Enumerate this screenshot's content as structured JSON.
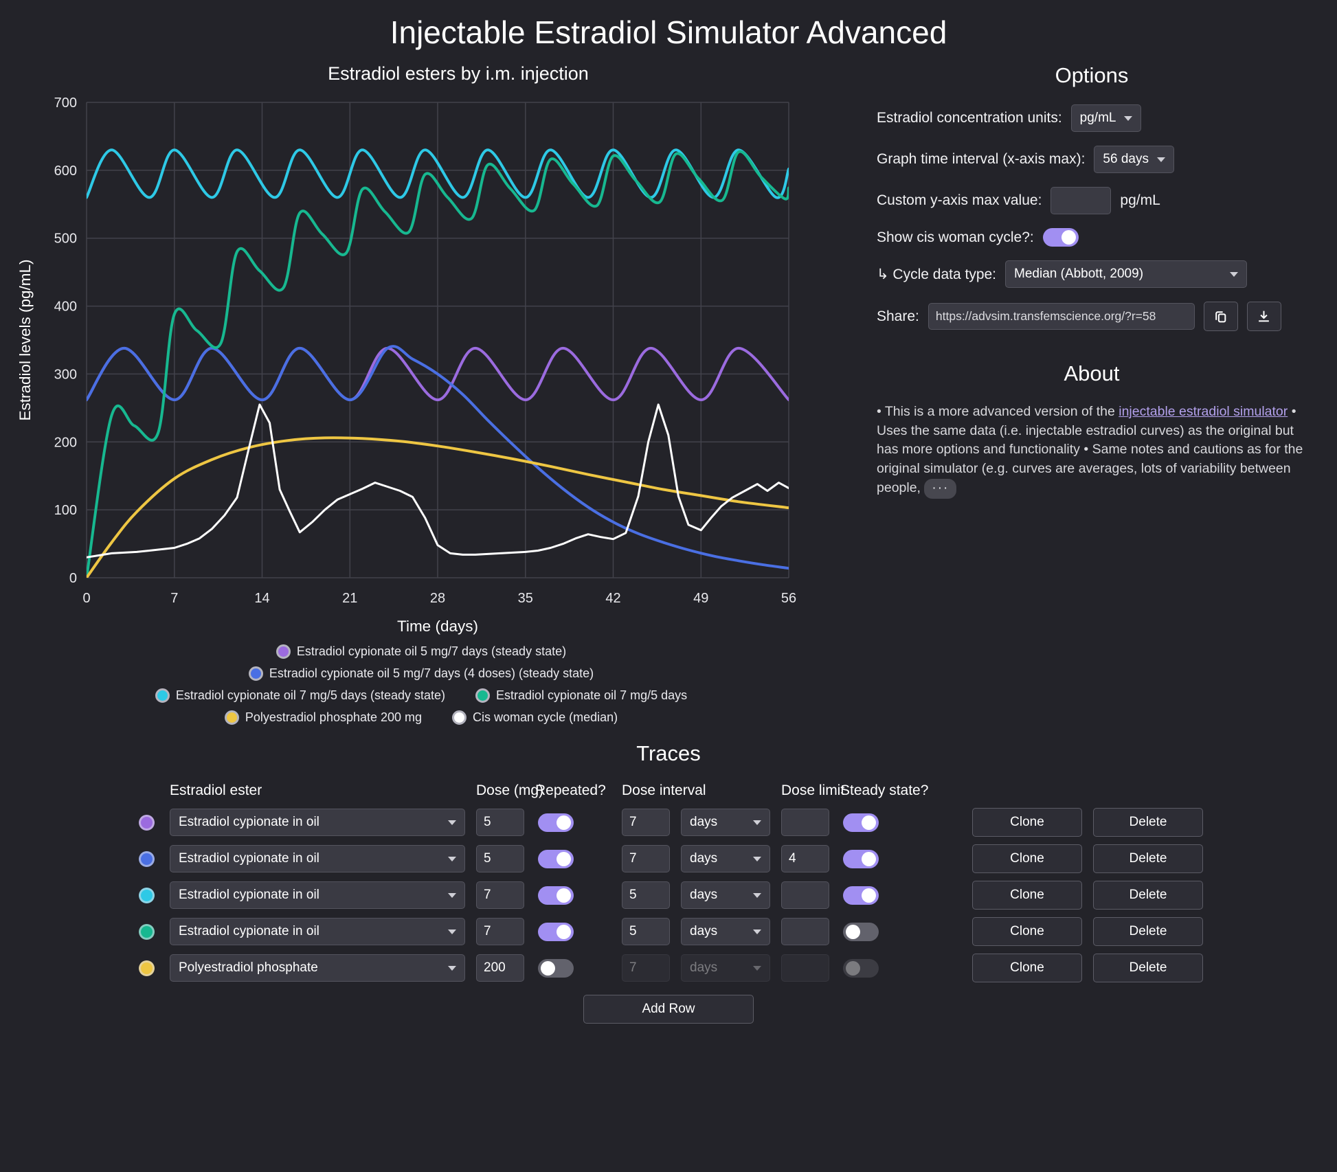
{
  "app": {
    "title": "Injectable Estradiol Simulator Advanced"
  },
  "colors": {
    "background": "#232329",
    "grid": "#42424b",
    "axis_text": "#e8e8ec",
    "toggle_on": "#a18ff2",
    "link": "#b3a1ec"
  },
  "chart_data": {
    "type": "line",
    "title": "Estradiol esters by i.m. injection",
    "xlabel": "Time (days)",
    "ylabel": "Estradiol levels (pg/mL)",
    "xlim": [
      0,
      56
    ],
    "ylim": [
      0,
      700
    ],
    "xticks": [
      0,
      7,
      14,
      21,
      28,
      35,
      42,
      49,
      56
    ],
    "yticks": [
      0,
      100,
      200,
      300,
      400,
      500,
      600,
      700
    ],
    "grid": true,
    "legend_position": "bottom",
    "legend_rows": [
      [
        0
      ],
      [
        1
      ],
      [
        2,
        3
      ],
      [
        4,
        5
      ]
    ],
    "series": [
      {
        "name": "Estradiol cypionate oil 5 mg/7 days (steady state)",
        "color": "#9b6bdf",
        "smooth": true,
        "points": [
          [
            0,
            262
          ],
          [
            3,
            338
          ],
          [
            7,
            262
          ],
          [
            10,
            338
          ],
          [
            14,
            262
          ],
          [
            17,
            338
          ],
          [
            21,
            262
          ],
          [
            24,
            338
          ],
          [
            28,
            262
          ],
          [
            31,
            338
          ],
          [
            35,
            262
          ],
          [
            38,
            338
          ],
          [
            42,
            262
          ],
          [
            45,
            338
          ],
          [
            49,
            262
          ],
          [
            52,
            338
          ],
          [
            56,
            262
          ]
        ]
      },
      {
        "name": "Estradiol cypionate oil 5 mg/7 days (4 doses) (steady state)",
        "color": "#4a6fe3",
        "smooth": true,
        "points": [
          [
            0,
            262
          ],
          [
            3,
            338
          ],
          [
            7,
            262
          ],
          [
            10,
            338
          ],
          [
            14,
            262
          ],
          [
            17,
            338
          ],
          [
            21,
            262
          ],
          [
            24,
            338
          ],
          [
            26,
            322
          ],
          [
            28,
            300
          ],
          [
            30,
            270
          ],
          [
            32,
            232
          ],
          [
            34,
            196
          ],
          [
            36,
            162
          ],
          [
            38,
            131
          ],
          [
            40,
            104
          ],
          [
            42,
            82
          ],
          [
            44,
            65
          ],
          [
            46,
            52
          ],
          [
            48,
            41
          ],
          [
            50,
            32
          ],
          [
            52,
            25
          ],
          [
            54,
            19
          ],
          [
            56,
            14
          ]
        ]
      },
      {
        "name": "Estradiol cypionate oil 7 mg/5 days (steady state)",
        "color": "#2ec9e6",
        "smooth": true,
        "points": [
          [
            0,
            560
          ],
          [
            2,
            630
          ],
          [
            5,
            560
          ],
          [
            7,
            630
          ],
          [
            10,
            560
          ],
          [
            12,
            630
          ],
          [
            15,
            560
          ],
          [
            17,
            630
          ],
          [
            20,
            560
          ],
          [
            22,
            630
          ],
          [
            25,
            560
          ],
          [
            27,
            630
          ],
          [
            30,
            560
          ],
          [
            32,
            630
          ],
          [
            35,
            560
          ],
          [
            37,
            630
          ],
          [
            40,
            560
          ],
          [
            42,
            630
          ],
          [
            45,
            560
          ],
          [
            47,
            630
          ],
          [
            50,
            560
          ],
          [
            52,
            630
          ],
          [
            55,
            560
          ],
          [
            56,
            602
          ]
        ]
      },
      {
        "name": "Estradiol cypionate oil 7 mg/5 days",
        "color": "#17b890",
        "smooth": true,
        "points": [
          [
            0,
            0
          ],
          [
            2,
            239
          ],
          [
            3.8,
            224
          ],
          [
            5.7,
            213
          ],
          [
            7,
            388
          ],
          [
            8.8,
            364
          ],
          [
            10.7,
            345
          ],
          [
            12,
            480
          ],
          [
            13.8,
            452
          ],
          [
            15.7,
            427
          ],
          [
            17,
            537
          ],
          [
            18.8,
            506
          ],
          [
            20.7,
            478
          ],
          [
            22,
            572
          ],
          [
            23.8,
            539
          ],
          [
            25.7,
            509
          ],
          [
            27,
            594
          ],
          [
            28.8,
            560
          ],
          [
            30.7,
            529
          ],
          [
            32,
            608
          ],
          [
            33.8,
            573
          ],
          [
            35.7,
            541
          ],
          [
            37,
            616
          ],
          [
            38.8,
            580
          ],
          [
            40.7,
            548
          ],
          [
            42,
            621
          ],
          [
            43.8,
            585
          ],
          [
            45.7,
            553
          ],
          [
            47,
            624
          ],
          [
            48.8,
            588
          ],
          [
            50.7,
            556
          ],
          [
            52,
            627
          ],
          [
            53.8,
            590
          ],
          [
            55.7,
            558
          ],
          [
            56,
            574
          ]
        ]
      },
      {
        "name": "Polyestradiol phosphate 200 mg",
        "color": "#eec643",
        "smooth": true,
        "points": [
          [
            0,
            0
          ],
          [
            2,
            52
          ],
          [
            4,
            97
          ],
          [
            7,
            146
          ],
          [
            10,
            174
          ],
          [
            13,
            192
          ],
          [
            16,
            202
          ],
          [
            19,
            206
          ],
          [
            22,
            205
          ],
          [
            25,
            201
          ],
          [
            28,
            194
          ],
          [
            31,
            185
          ],
          [
            34,
            175
          ],
          [
            37,
            164
          ],
          [
            40,
            152
          ],
          [
            43,
            141
          ],
          [
            46,
            130
          ],
          [
            49,
            121
          ],
          [
            52,
            112
          ],
          [
            56,
            103
          ]
        ]
      },
      {
        "name": "Cis woman cycle (median)",
        "color": "#ffffff",
        "smooth": false,
        "points": [
          [
            0,
            30
          ],
          [
            1,
            33
          ],
          [
            2,
            36
          ],
          [
            3,
            37
          ],
          [
            4,
            38
          ],
          [
            5,
            40
          ],
          [
            6,
            42
          ],
          [
            7,
            44
          ],
          [
            8,
            50
          ],
          [
            9,
            58
          ],
          [
            10,
            72
          ],
          [
            11,
            92
          ],
          [
            12,
            118
          ],
          [
            13,
            195
          ],
          [
            13.8,
            255
          ],
          [
            14.6,
            228
          ],
          [
            15.4,
            130
          ],
          [
            16.2,
            98
          ],
          [
            17,
            67
          ],
          [
            18,
            82
          ],
          [
            19,
            100
          ],
          [
            20,
            115
          ],
          [
            21,
            123
          ],
          [
            22,
            131
          ],
          [
            23,
            140
          ],
          [
            24,
            134
          ],
          [
            25,
            128
          ],
          [
            26,
            119
          ],
          [
            27,
            88
          ],
          [
            28,
            48
          ],
          [
            29,
            36
          ],
          [
            30,
            34
          ],
          [
            31,
            34
          ],
          [
            32,
            35
          ],
          [
            33,
            36
          ],
          [
            34,
            37
          ],
          [
            35,
            38
          ],
          [
            36,
            40
          ],
          [
            37,
            44
          ],
          [
            38,
            50
          ],
          [
            39,
            58
          ],
          [
            40,
            64
          ],
          [
            41,
            60
          ],
          [
            42,
            57
          ],
          [
            43,
            66
          ],
          [
            44,
            120
          ],
          [
            44.8,
            200
          ],
          [
            45.6,
            255
          ],
          [
            46.4,
            210
          ],
          [
            47.2,
            120
          ],
          [
            48,
            78
          ],
          [
            49,
            70
          ],
          [
            49.8,
            88
          ],
          [
            50.6,
            105
          ],
          [
            51.5,
            118
          ],
          [
            52.5,
            128
          ],
          [
            53.5,
            138
          ],
          [
            54.3,
            128
          ],
          [
            55.2,
            140
          ],
          [
            56,
            132
          ]
        ]
      }
    ]
  },
  "options": {
    "heading": "Options",
    "units_label": "Estradiol concentration units:",
    "units_value": "pg/mL",
    "interval_label": "Graph time interval (x-axis max):",
    "interval_value": "56 days",
    "ymax_label": "Custom y-axis max value:",
    "ymax_value": "",
    "ymax_unit": "pg/mL",
    "cycle_toggle_label": "Show cis woman cycle?:",
    "cycle_toggle_on": true,
    "cycle_type_label": "↳ Cycle data type:",
    "cycle_type_value": "Median (Abbott, 2009)",
    "share_label": "Share:",
    "share_url": "https://advsim.transfemscience.org/?r=58"
  },
  "about": {
    "heading": "About",
    "text_before_link": "• This is a more advanced version of the ",
    "link_text": "injectable estradiol simulator",
    "text_after_link": " • Uses the same data (i.e. injectable estradiol curves) as the original but has more options and functionality • Same notes and cautions as for the original simulator (e.g. curves are averages, lots of variability between people, ",
    "more_label": "···"
  },
  "traces": {
    "heading": "Traces",
    "columns": [
      "Estradiol ester",
      "Dose (mg)",
      "Repeated?",
      "Dose interval",
      "Dose limit",
      "Steady state?"
    ],
    "clone_label": "Clone",
    "delete_label": "Delete",
    "add_row_label": "Add Row",
    "rows": [
      {
        "color": "#9b6bdf",
        "ester": "Estradiol cypionate in oil",
        "dose": "5",
        "repeated": true,
        "interval": "7",
        "interval_unit": "days",
        "limit": "",
        "steady": true,
        "controls_disabled": false
      },
      {
        "color": "#4a6fe3",
        "ester": "Estradiol cypionate in oil",
        "dose": "5",
        "repeated": true,
        "interval": "7",
        "interval_unit": "days",
        "limit": "4",
        "steady": true,
        "controls_disabled": false
      },
      {
        "color": "#2ec9e6",
        "ester": "Estradiol cypionate in oil",
        "dose": "7",
        "repeated": true,
        "interval": "5",
        "interval_unit": "days",
        "limit": "",
        "steady": true,
        "controls_disabled": false
      },
      {
        "color": "#17b890",
        "ester": "Estradiol cypionate in oil",
        "dose": "7",
        "repeated": true,
        "interval": "5",
        "interval_unit": "days",
        "limit": "",
        "steady": false,
        "controls_disabled": false
      },
      {
        "color": "#eec643",
        "ester": "Polyestradiol phosphate",
        "dose": "200",
        "repeated": false,
        "interval": "7",
        "interval_unit": "days",
        "limit": "",
        "steady": false,
        "controls_disabled": true
      }
    ]
  }
}
